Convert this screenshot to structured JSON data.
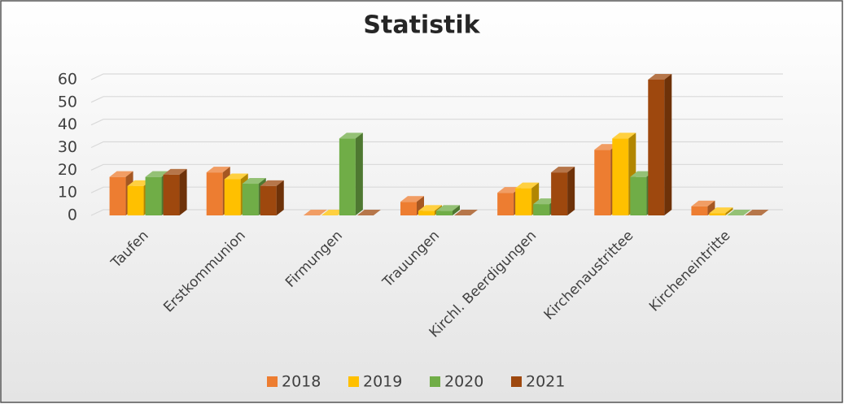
{
  "chart_data": {
    "type": "bar3d",
    "title": "Statistik",
    "categories": [
      "Taufen",
      "Erstkommunion",
      "Firmungen",
      "Trauungen",
      "Kirchl. Beerdigungen",
      "Kirchenaustrittee",
      "Kircheneintritte"
    ],
    "series": [
      {
        "name": "2018",
        "color": "#ed7d31",
        "values": [
          17,
          19,
          0,
          6,
          10,
          29,
          4
        ]
      },
      {
        "name": "2019",
        "color": "#ffc000",
        "values": [
          13,
          16,
          0,
          2,
          12,
          34,
          1
        ]
      },
      {
        "name": "2020",
        "color": "#70ad47",
        "values": [
          17,
          14,
          34,
          2,
          5,
          17,
          0
        ]
      },
      {
        "name": "2021",
        "color": "#9e480e",
        "values": [
          18,
          13,
          0,
          0,
          19,
          60,
          0
        ]
      }
    ],
    "ylim": [
      0,
      60
    ],
    "yticks": [
      0,
      10,
      20,
      30,
      40,
      50,
      60
    ],
    "grid": true,
    "legend": "bottom"
  }
}
